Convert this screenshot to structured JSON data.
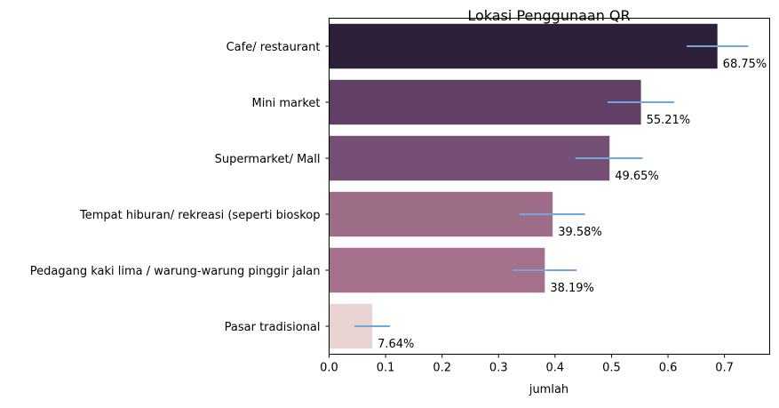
{
  "chart_data": {
    "type": "bar",
    "orientation": "horizontal",
    "title": "Lokasi Penggunaan QR",
    "xlabel": "jumlah",
    "ylabel": "",
    "xlim": [
      0,
      0.78
    ],
    "xticks": [
      0.0,
      0.1,
      0.2,
      0.3,
      0.4,
      0.5,
      0.6,
      0.7
    ],
    "xtick_labels": [
      "0.0",
      "0.1",
      "0.2",
      "0.3",
      "0.4",
      "0.5",
      "0.6",
      "0.7"
    ],
    "grid": false,
    "categories": [
      "Cafe/ restaurant",
      "Mini market",
      "Supermarket/ Mall",
      "Tempat hiburan/ rekreasi (seperti bioskop",
      "Pedagang kaki lima / warung-warung pinggir jalan",
      "Pasar tradisional"
    ],
    "values": [
      0.6875,
      0.5521,
      0.4965,
      0.3958,
      0.3819,
      0.0764
    ],
    "value_labels": [
      "68.75%",
      "55.21%",
      "49.65%",
      "39.58%",
      "38.19%",
      "7.64%"
    ],
    "error_low": [
      0.633,
      0.493,
      0.436,
      0.337,
      0.325,
      0.045
    ],
    "error_high": [
      0.742,
      0.611,
      0.555,
      0.453,
      0.438,
      0.108
    ],
    "bar_colors": [
      "#2d2139",
      "#623f65",
      "#764f74",
      "#9e6d87",
      "#a4708c",
      "#e8d3d1"
    ],
    "error_color": "#6fa8dc"
  }
}
